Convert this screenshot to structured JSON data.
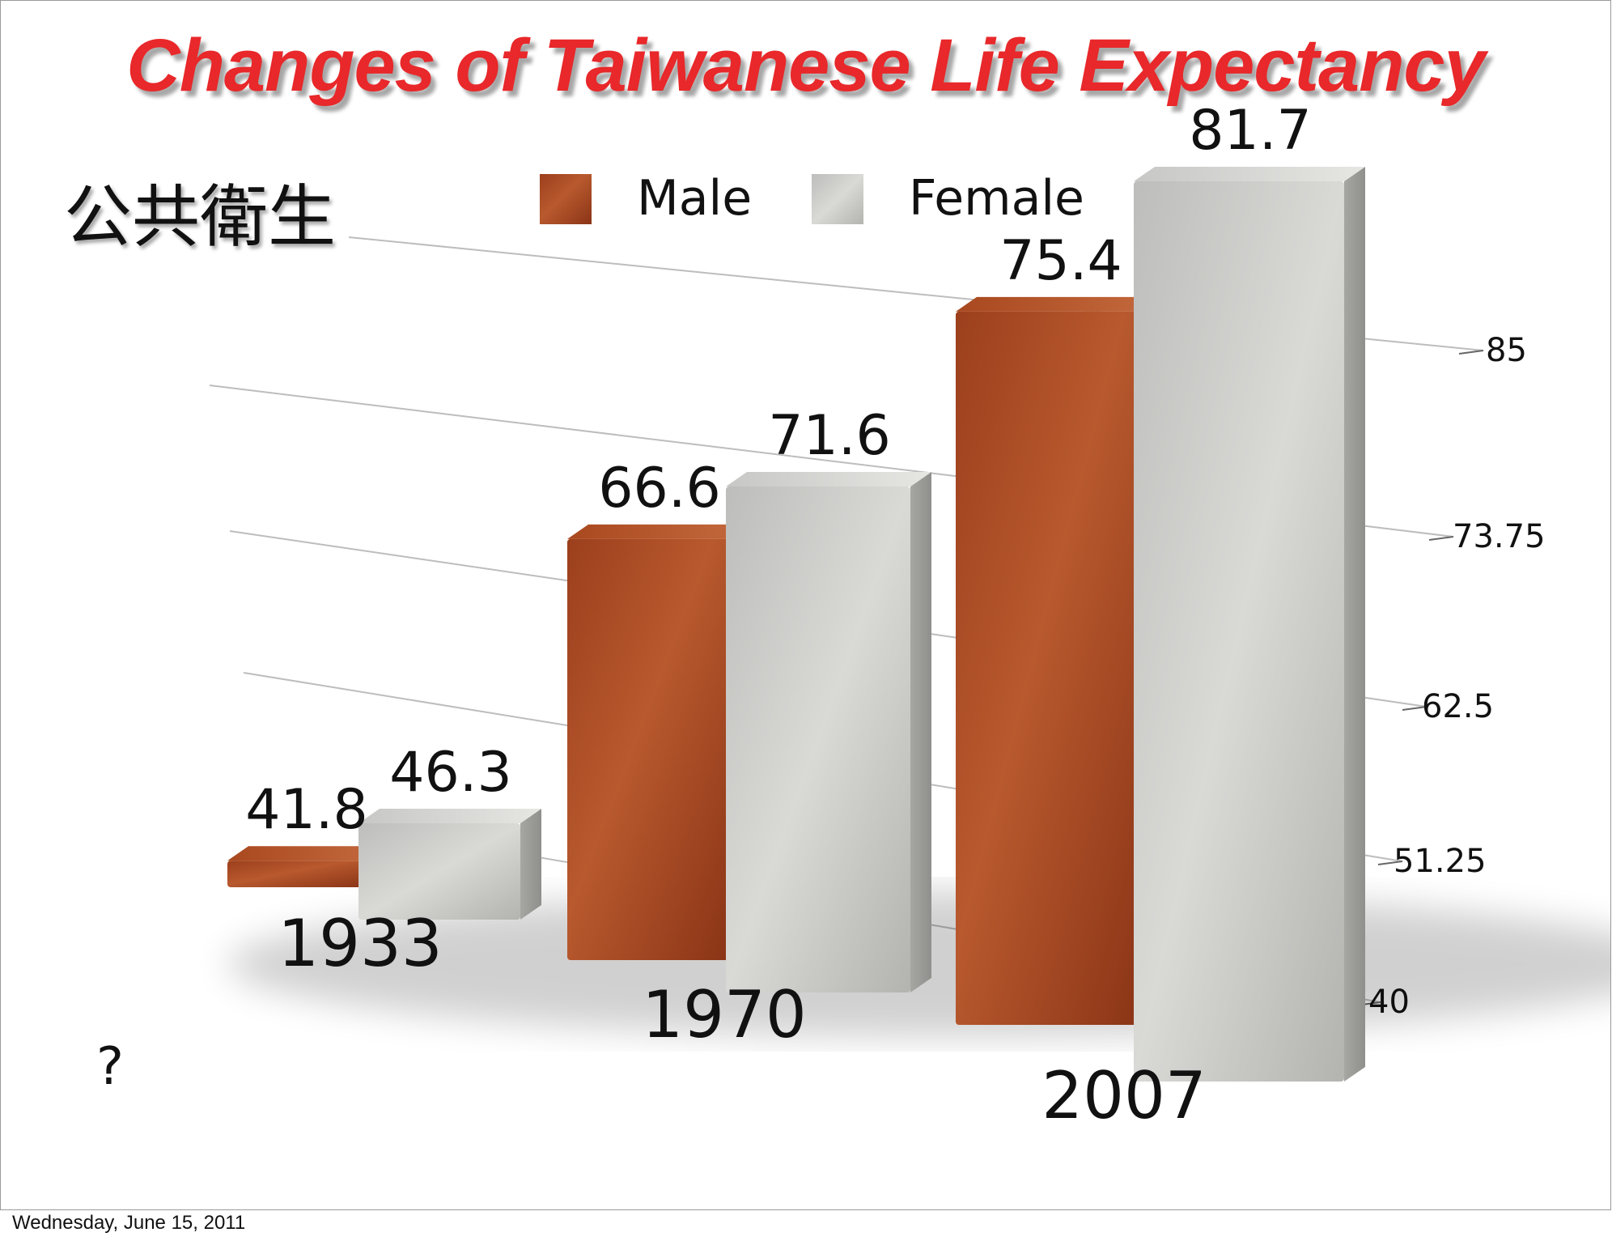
{
  "slide": {
    "title": "Changes of Taiwanese Life Expectancy",
    "subtitle": "公共衛生",
    "note": "?",
    "footer": "Wednesday, June 15, 2011"
  },
  "colors": {
    "title": "#e8282a",
    "male": "#b5512a",
    "female": "#c9c9c6"
  },
  "chart_data": {
    "type": "bar",
    "categories": [
      "1933",
      "1970",
      "2007"
    ],
    "series": [
      {
        "name": "Male",
        "values": [
          41.8,
          66.6,
          75.4
        ]
      },
      {
        "name": "Female",
        "values": [
          46.3,
          71.6,
          81.7
        ]
      }
    ],
    "data_labels": [
      [
        "41.8",
        "66.6",
        "75.4"
      ],
      [
        "46.3",
        "71.6",
        "81.7"
      ]
    ],
    "yticks": [
      "40",
      "51.25",
      "62.5",
      "73.75",
      "85"
    ],
    "ylim": [
      40,
      85
    ],
    "grid": true,
    "legend": "top",
    "style": "3d"
  }
}
